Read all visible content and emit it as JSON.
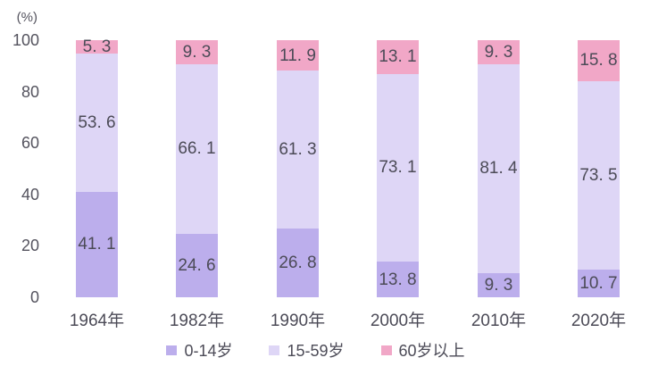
{
  "chart_data": {
    "type": "bar",
    "stacked": true,
    "unit_label": "(%)",
    "categories": [
      "1964年",
      "1982年",
      "1990年",
      "2000年",
      "2010年",
      "2020年"
    ],
    "series": [
      {
        "name": "0-14岁",
        "color": "#bcaeec",
        "values": [
          41.1,
          24.6,
          26.8,
          13.8,
          9.3,
          10.7
        ]
      },
      {
        "name": "15-59岁",
        "color": "#ded6f6",
        "values": [
          53.6,
          66.1,
          61.3,
          73.1,
          81.4,
          73.5
        ]
      },
      {
        "name": "60岁以上",
        "color": "#f1a7c7",
        "values": [
          5.3,
          9.3,
          11.9,
          13.1,
          9.3,
          15.8
        ]
      }
    ],
    "y_ticks": [
      0,
      20,
      40,
      60,
      80,
      100
    ],
    "ylim": [
      0,
      100
    ],
    "grid": false,
    "axis_lines": false,
    "value_labels": true,
    "legend_position": "bottom",
    "colors": {
      "value_text": "#4c4b57",
      "axis_text": "#54535e",
      "background": "#ffffff"
    }
  }
}
